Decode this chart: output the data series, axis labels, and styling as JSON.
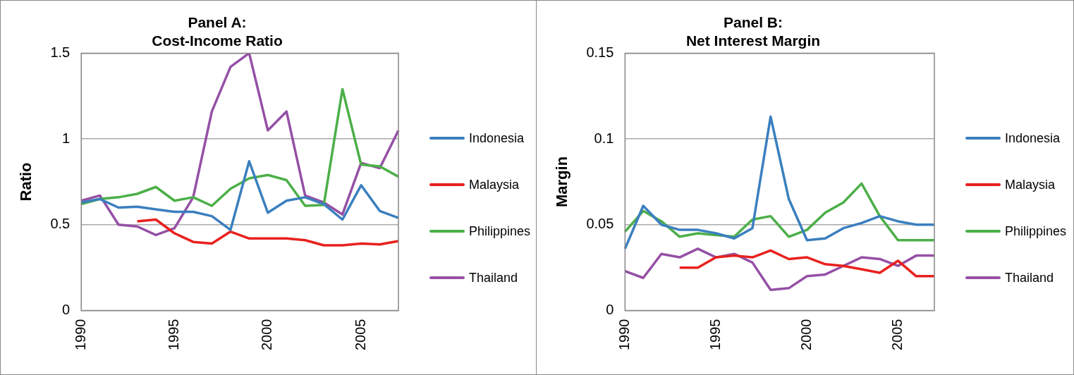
{
  "chart_data": [
    {
      "type": "line",
      "title": "Panel A:\nCost-Income Ratio",
      "ylabel": "Ratio",
      "categories": [
        "1990",
        null,
        null,
        null,
        null,
        "1995",
        null,
        null,
        null,
        null,
        "2000",
        null,
        null,
        null,
        null,
        "2005",
        null,
        null
      ],
      "ylim": [
        0,
        1.5
      ],
      "yticks": [
        0,
        0.5,
        1,
        1.5
      ],
      "grid": "y",
      "legend": "right",
      "marker": "none",
      "line_style": "solid",
      "series": [
        {
          "name": "Indonesia",
          "color": "#3a7fbf",
          "values": [
            0.63,
            0.65,
            0.6,
            0.605,
            0.59,
            0.575,
            0.575,
            0.55,
            0.47,
            0.87,
            0.57,
            0.64,
            0.66,
            0.62,
            0.53,
            0.73,
            0.58,
            0.54
          ]
        },
        {
          "name": "Malaysia",
          "color": "#e8211e",
          "values": [
            null,
            null,
            null,
            0.52,
            0.53,
            0.45,
            0.4,
            0.39,
            0.46,
            0.42,
            0.42,
            0.42,
            0.41,
            0.38,
            0.38,
            0.39,
            0.385,
            0.405
          ]
        },
        {
          "name": "Philippines",
          "color": "#4caf48",
          "values": [
            0.62,
            0.65,
            0.66,
            0.68,
            0.72,
            0.64,
            0.66,
            0.61,
            0.71,
            0.77,
            0.79,
            0.76,
            0.61,
            0.615,
            1.29,
            0.85,
            0.84,
            0.78
          ]
        },
        {
          "name": "Thailand",
          "color": "#9550a5",
          "values": [
            0.64,
            0.67,
            0.5,
            0.49,
            0.44,
            0.48,
            0.66,
            1.16,
            1.42,
            1.5,
            1.05,
            1.16,
            0.67,
            0.63,
            0.56,
            0.86,
            0.83,
            1.05
          ]
        }
      ]
    },
    {
      "type": "line",
      "title": "Panel B:\nNet Interest Margin",
      "ylabel": "Margin",
      "categories": [
        "1990",
        null,
        null,
        null,
        null,
        "1995",
        null,
        null,
        null,
        null,
        "2000",
        null,
        null,
        null,
        null,
        "2005",
        null,
        null
      ],
      "ylim": [
        0,
        0.15
      ],
      "yticks": [
        0,
        0.05,
        0.1,
        0.15
      ],
      "grid": "y",
      "legend": "right",
      "marker": "none",
      "line_style": "solid",
      "series": [
        {
          "name": "Indonesia",
          "color": "#3a7fbf",
          "values": [
            0.036,
            0.061,
            0.05,
            0.047,
            0.047,
            0.045,
            0.042,
            0.048,
            0.113,
            0.065,
            0.041,
            0.042,
            0.048,
            0.051,
            0.055,
            0.052,
            0.05,
            0.05
          ]
        },
        {
          "name": "Malaysia",
          "color": "#e8211e",
          "values": [
            null,
            null,
            null,
            0.025,
            0.025,
            0.031,
            0.032,
            0.031,
            0.035,
            0.03,
            0.031,
            0.027,
            0.026,
            0.024,
            0.022,
            0.029,
            0.02,
            0.02
          ]
        },
        {
          "name": "Philippines",
          "color": "#4caf48",
          "values": [
            0.046,
            0.058,
            0.052,
            0.043,
            0.045,
            0.044,
            0.043,
            0.053,
            0.055,
            0.043,
            0.047,
            0.057,
            0.063,
            0.074,
            0.055,
            0.041,
            0.041,
            0.041
          ]
        },
        {
          "name": "Thailand",
          "color": "#9550a5",
          "values": [
            0.023,
            0.019,
            0.033,
            0.031,
            0.036,
            0.031,
            0.033,
            0.028,
            0.012,
            0.013,
            0.02,
            0.021,
            0.026,
            0.031,
            0.03,
            0.026,
            0.032,
            0.032
          ]
        }
      ]
    }
  ]
}
